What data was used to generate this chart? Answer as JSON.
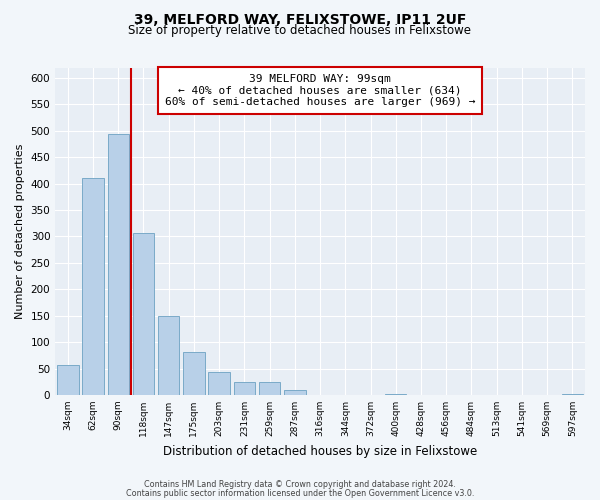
{
  "title": "39, MELFORD WAY, FELIXSTOWE, IP11 2UF",
  "subtitle": "Size of property relative to detached houses in Felixstowe",
  "xlabel": "Distribution of detached houses by size in Felixstowe",
  "ylabel": "Number of detached properties",
  "bar_labels": [
    "34sqm",
    "62sqm",
    "90sqm",
    "118sqm",
    "147sqm",
    "175sqm",
    "203sqm",
    "231sqm",
    "259sqm",
    "287sqm",
    "316sqm",
    "344sqm",
    "372sqm",
    "400sqm",
    "428sqm",
    "456sqm",
    "484sqm",
    "513sqm",
    "541sqm",
    "569sqm",
    "597sqm"
  ],
  "bar_values": [
    57,
    410,
    495,
    307,
    150,
    82,
    43,
    25,
    25,
    10,
    0,
    0,
    0,
    2,
    0,
    0,
    0,
    0,
    0,
    0,
    2
  ],
  "bar_color": "#b8d0e8",
  "bar_edge_color": "#7aaac8",
  "vline_x": 2.5,
  "vline_color": "#cc0000",
  "ylim": [
    0,
    620
  ],
  "yticks": [
    0,
    50,
    100,
    150,
    200,
    250,
    300,
    350,
    400,
    450,
    500,
    550,
    600
  ],
  "annotation_title": "39 MELFORD WAY: 99sqm",
  "annotation_line1": "← 40% of detached houses are smaller (634)",
  "annotation_line2": "60% of semi-detached houses are larger (969) →",
  "annotation_box_color": "#ffffff",
  "annotation_box_edge": "#cc0000",
  "footer1": "Contains HM Land Registry data © Crown copyright and database right 2024.",
  "footer2": "Contains public sector information licensed under the Open Government Licence v3.0.",
  "background_color": "#f2f6fa",
  "plot_bg_color": "#e8eef5",
  "grid_color": "#ffffff"
}
